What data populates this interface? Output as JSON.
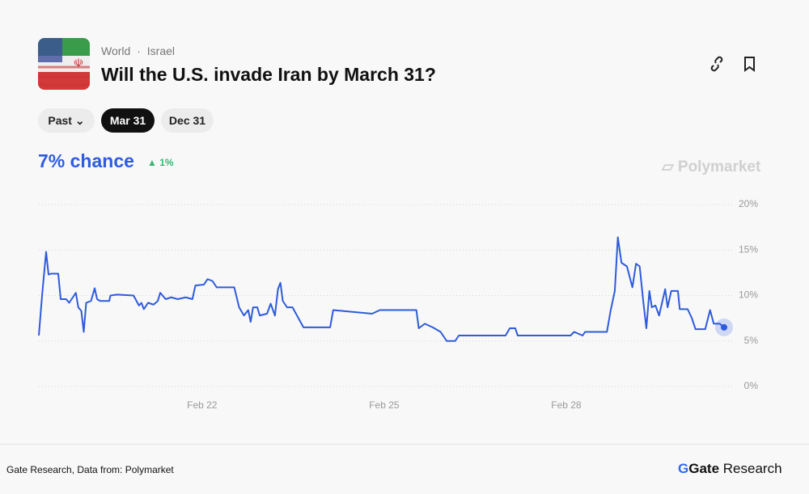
{
  "header": {
    "breadcrumb": [
      "World",
      "Israel"
    ],
    "title": "Will the U.S. invade Iran by March 31?",
    "tabs": [
      "Past",
      "Mar 31",
      "Dec 31"
    ],
    "chance": "7% chance",
    "change": "1%",
    "watermark": "Polymarket"
  },
  "chart_data": {
    "type": "line",
    "x": [
      19.31,
      19.37,
      19.43,
      19.47,
      19.51,
      19.63,
      19.67,
      19.76,
      19.81,
      19.87,
      19.92,
      19.96,
      20.01,
      20.05,
      20.09,
      20.17,
      20.23,
      20.27,
      20.32,
      20.47,
      20.49,
      20.6,
      20.87,
      20.96,
      21.0,
      21.04,
      21.11,
      21.2,
      21.27,
      21.31,
      21.4,
      21.49,
      21.6,
      21.73,
      21.84,
      21.89,
      22.03,
      22.09,
      22.17,
      22.24,
      22.53,
      22.61,
      22.69,
      22.76,
      22.8,
      22.84,
      22.91,
      22.95,
      23.07,
      23.13,
      23.2,
      23.25,
      23.29,
      23.33,
      23.4,
      23.49,
      23.67,
      24.11,
      24.16,
      24.8,
      24.93,
      25.53,
      25.57,
      25.67,
      25.8,
      25.93,
      26.03,
      26.17,
      26.23,
      27.0,
      27.07,
      27.16,
      27.2,
      28.07,
      28.13,
      28.27,
      28.31,
      28.67,
      28.73,
      28.8,
      28.85,
      28.91,
      29.0,
      29.09,
      29.15,
      29.21,
      29.27,
      29.32,
      29.37,
      29.41,
      29.47,
      29.53,
      29.63,
      29.67,
      29.73,
      29.84,
      29.87,
      30.0,
      30.07,
      30.13,
      30.24,
      30.29,
      30.37,
      30.43,
      30.53,
      30.6
    ],
    "series": [
      {
        "color": "#2e5bdb",
        "values": [
          5.6,
          10.5,
          14.8,
          12.3,
          12.4,
          12.4,
          9.6,
          9.6,
          9.2,
          9.8,
          10.3,
          8.7,
          8.3,
          6.0,
          9.2,
          9.4,
          10.8,
          9.6,
          9.4,
          9.4,
          10.0,
          10.1,
          10.0,
          8.9,
          9.2,
          8.5,
          9.2,
          9.0,
          9.4,
          10.3,
          9.6,
          9.8,
          9.6,
          9.8,
          9.6,
          11.1,
          11.2,
          11.8,
          11.6,
          10.9,
          10.9,
          8.7,
          7.8,
          8.4,
          7.1,
          8.7,
          8.7,
          7.8,
          8.0,
          9.1,
          7.8,
          10.7,
          11.4,
          9.4,
          8.7,
          8.7,
          6.5,
          6.5,
          8.4,
          8.0,
          8.4,
          8.4,
          6.4,
          6.9,
          6.5,
          6.0,
          5.0,
          5.0,
          5.6,
          5.6,
          6.4,
          6.4,
          5.6,
          5.6,
          6.0,
          5.6,
          6.0,
          6.0,
          8.3,
          10.5,
          16.4,
          13.6,
          13.2,
          10.9,
          13.5,
          13.2,
          9.3,
          6.4,
          10.5,
          8.7,
          8.9,
          7.8,
          10.7,
          8.7,
          10.5,
          10.5,
          8.5,
          8.5,
          7.5,
          6.3,
          6.3,
          6.3,
          8.4,
          6.9,
          6.9,
          6.5
        ]
      }
    ],
    "xlim": [
      19.31,
      31.2
    ],
    "xticks": [
      {
        "value": 22,
        "label": "Feb 22"
      },
      {
        "value": 25,
        "label": "Feb 25"
      },
      {
        "value": 28,
        "label": "Feb 28"
      }
    ],
    "ylim": [
      0,
      20
    ],
    "yticks": [
      {
        "value": 0,
        "label": "0%"
      },
      {
        "value": 5,
        "label": "5%"
      },
      {
        "value": 10,
        "label": "10%"
      },
      {
        "value": 15,
        "label": "15%"
      },
      {
        "value": 20,
        "label": "20%"
      }
    ],
    "grid": true
  },
  "footer": {
    "source": "Gate Research, Data from: Polymarket",
    "logo": [
      "Gate",
      "Research"
    ]
  }
}
